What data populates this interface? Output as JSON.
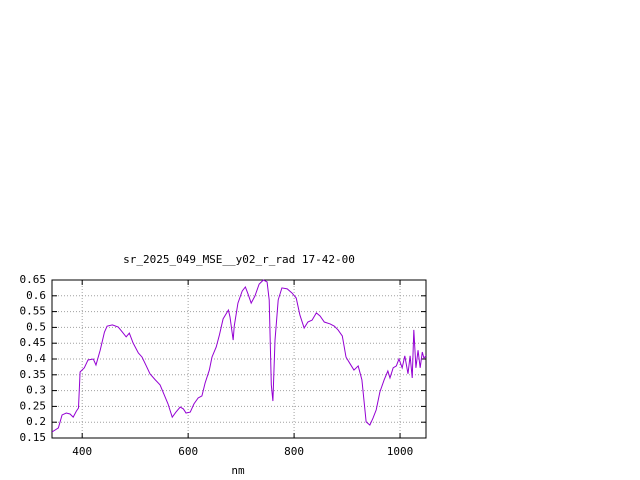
{
  "chart_data": {
    "type": "line",
    "title": "sr_2025_049_MSE__y02_r_rad 17-42-00",
    "x_label": "nm",
    "x": [
      343,
      355,
      362,
      370,
      377,
      383,
      389,
      393,
      396,
      404,
      411,
      421,
      426,
      434,
      442,
      447,
      457,
      468,
      476,
      483,
      489,
      496,
      506,
      513,
      521,
      528,
      538,
      547,
      555,
      562,
      570,
      577,
      585,
      591,
      596,
      604,
      611,
      619,
      626,
      632,
      640,
      645,
      653,
      659,
      666,
      676,
      679,
      685,
      687,
      694,
      702,
      708,
      713,
      719,
      726,
      734,
      742,
      749,
      753,
      757,
      760,
      764,
      770,
      777,
      787,
      796,
      804,
      811,
      819,
      826,
      834,
      842,
      849,
      857,
      868,
      876,
      883,
      891,
      898,
      906,
      913,
      921,
      928,
      936,
      943,
      949,
      955,
      962,
      970,
      977,
      981,
      987,
      993,
      998,
      1004,
      1009,
      1015,
      1019,
      1023,
      1026,
      1030,
      1034,
      1038,
      1042,
      1045,
      1049
    ],
    "values": [
      0.169,
      0.182,
      0.223,
      0.229,
      0.226,
      0.216,
      0.235,
      0.245,
      0.359,
      0.372,
      0.397,
      0.4,
      0.381,
      0.428,
      0.485,
      0.504,
      0.508,
      0.501,
      0.485,
      0.47,
      0.482,
      0.451,
      0.419,
      0.406,
      0.378,
      0.353,
      0.334,
      0.318,
      0.286,
      0.258,
      0.216,
      0.232,
      0.248,
      0.242,
      0.229,
      0.232,
      0.258,
      0.277,
      0.283,
      0.324,
      0.365,
      0.406,
      0.438,
      0.476,
      0.527,
      0.555,
      0.533,
      0.46,
      0.504,
      0.577,
      0.615,
      0.628,
      0.606,
      0.577,
      0.599,
      0.637,
      0.65,
      0.644,
      0.587,
      0.318,
      0.267,
      0.46,
      0.587,
      0.625,
      0.622,
      0.609,
      0.593,
      0.539,
      0.498,
      0.517,
      0.523,
      0.546,
      0.536,
      0.517,
      0.511,
      0.504,
      0.492,
      0.473,
      0.406,
      0.384,
      0.365,
      0.378,
      0.334,
      0.201,
      0.191,
      0.213,
      0.239,
      0.296,
      0.334,
      0.362,
      0.34,
      0.372,
      0.378,
      0.4,
      0.372,
      0.41,
      0.353,
      0.41,
      0.34,
      0.492,
      0.372,
      0.428,
      0.372,
      0.422,
      0.403,
      0.41
    ],
    "color": "#9400d3",
    "xlim": [
      343,
      1049
    ],
    "xticks": [
      400,
      600,
      800,
      1000
    ],
    "ylim": [
      0.15,
      0.65
    ],
    "yticks": [
      0.15,
      0.2,
      0.25,
      0.3,
      0.35,
      0.4,
      0.45,
      0.5,
      0.55,
      0.6,
      0.65
    ],
    "grid": true
  }
}
